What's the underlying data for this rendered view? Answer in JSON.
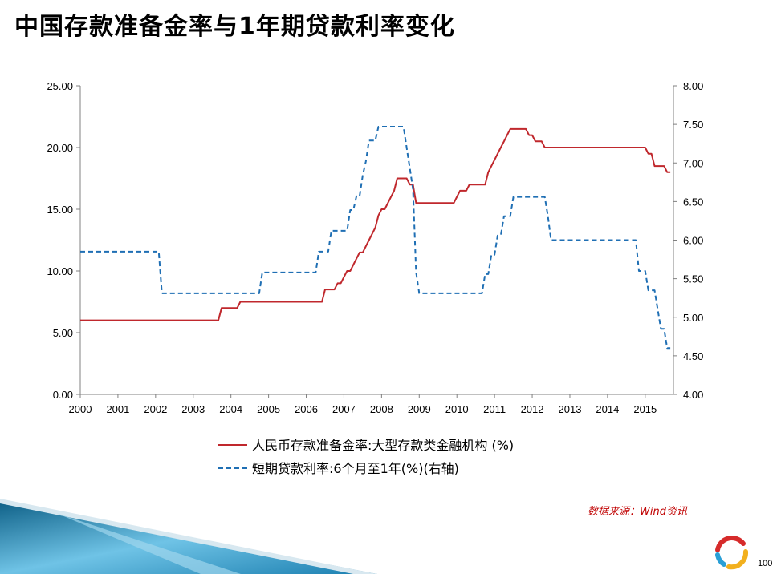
{
  "title": "中国存款准备金率与1年期贷款利率变化",
  "source": "数据来源：Wind资讯",
  "page_number": "100",
  "colors": {
    "series1": "#c0282d",
    "series2": "#1f6fb4",
    "source": "#c00000"
  },
  "chart_data": {
    "type": "line",
    "x_ticks": [
      "2000",
      "2001",
      "2002",
      "2003",
      "2004",
      "2005",
      "2006",
      "2007",
      "2008",
      "2009",
      "2010",
      "2011",
      "2012",
      "2013",
      "2014",
      "2015"
    ],
    "y_left": {
      "min": 0,
      "max": 25,
      "ticks": [
        "0.00",
        "5.00",
        "10.00",
        "15.00",
        "20.00",
        "25.00"
      ]
    },
    "y_right": {
      "min": 4,
      "max": 8,
      "ticks": [
        "4.00",
        "4.50",
        "5.00",
        "5.50",
        "6.00",
        "6.50",
        "7.00",
        "7.50",
        "8.00"
      ]
    },
    "legend_position": "bottom",
    "series": [
      {
        "name": "人民币存款准备金率:大型存款类金融机构 (%)",
        "axis": "left",
        "style": "solid",
        "points": [
          [
            "2000-01",
            6.0
          ],
          [
            "2003-09",
            6.0
          ],
          [
            "2003-10",
            7.0
          ],
          [
            "2004-03",
            7.0
          ],
          [
            "2004-04",
            7.5
          ],
          [
            "2006-06",
            7.5
          ],
          [
            "2006-07",
            8.5
          ],
          [
            "2006-10",
            8.5
          ],
          [
            "2006-11",
            9.0
          ],
          [
            "2006-12",
            9.0
          ],
          [
            "2007-01",
            9.5
          ],
          [
            "2007-02",
            10.0
          ],
          [
            "2007-03",
            10.0
          ],
          [
            "2007-04",
            10.5
          ],
          [
            "2007-05",
            11.0
          ],
          [
            "2007-06",
            11.5
          ],
          [
            "2007-07",
            11.5
          ],
          [
            "2007-08",
            12.0
          ],
          [
            "2007-09",
            12.5
          ],
          [
            "2007-10",
            13.0
          ],
          [
            "2007-11",
            13.5
          ],
          [
            "2007-12",
            14.5
          ],
          [
            "2008-01",
            15.0
          ],
          [
            "2008-02",
            15.0
          ],
          [
            "2008-03",
            15.5
          ],
          [
            "2008-04",
            16.0
          ],
          [
            "2008-05",
            16.5
          ],
          [
            "2008-06",
            17.5
          ],
          [
            "2008-09",
            17.5
          ],
          [
            "2008-10",
            17.0
          ],
          [
            "2008-11",
            17.0
          ],
          [
            "2008-12",
            15.5
          ],
          [
            "2009-12",
            15.5
          ],
          [
            "2010-01",
            16.0
          ],
          [
            "2010-02",
            16.5
          ],
          [
            "2010-03",
            16.5
          ],
          [
            "2010-04",
            16.5
          ],
          [
            "2010-05",
            17.0
          ],
          [
            "2010-10",
            17.0
          ],
          [
            "2010-11",
            18.0
          ],
          [
            "2010-12",
            18.5
          ],
          [
            "2011-01",
            19.0
          ],
          [
            "2011-02",
            19.5
          ],
          [
            "2011-03",
            20.0
          ],
          [
            "2011-04",
            20.5
          ],
          [
            "2011-05",
            21.0
          ],
          [
            "2011-06",
            21.5
          ],
          [
            "2011-11",
            21.5
          ],
          [
            "2011-12",
            21.0
          ],
          [
            "2012-01",
            21.0
          ],
          [
            "2012-02",
            20.5
          ],
          [
            "2012-04",
            20.5
          ],
          [
            "2012-05",
            20.0
          ],
          [
            "2015-01",
            20.0
          ],
          [
            "2015-02",
            19.5
          ],
          [
            "2015-03",
            19.5
          ],
          [
            "2015-04",
            18.5
          ],
          [
            "2015-05",
            18.5
          ],
          [
            "2015-06",
            18.5
          ],
          [
            "2015-07",
            18.5
          ],
          [
            "2015-08",
            18.0
          ],
          [
            "2015-09",
            18.0
          ]
        ]
      },
      {
        "name": "短期贷款利率:6个月至1年(%)(右轴)",
        "axis": "right",
        "style": "dashed",
        "points": [
          [
            "2000-01",
            5.85
          ],
          [
            "2002-02",
            5.85
          ],
          [
            "2002-03",
            5.31
          ],
          [
            "2004-10",
            5.31
          ],
          [
            "2004-11",
            5.58
          ],
          [
            "2006-04",
            5.58
          ],
          [
            "2006-05",
            5.85
          ],
          [
            "2006-08",
            5.85
          ],
          [
            "2006-09",
            6.12
          ],
          [
            "2007-02",
            6.12
          ],
          [
            "2007-03",
            6.39
          ],
          [
            "2007-04",
            6.39
          ],
          [
            "2007-05",
            6.57
          ],
          [
            "2007-06",
            6.57
          ],
          [
            "2007-07",
            6.84
          ],
          [
            "2007-08",
            7.02
          ],
          [
            "2007-09",
            7.29
          ],
          [
            "2007-11",
            7.29
          ],
          [
            "2007-12",
            7.47
          ],
          [
            "2008-08",
            7.47
          ],
          [
            "2008-09",
            7.2
          ],
          [
            "2008-10",
            6.93
          ],
          [
            "2008-11",
            6.66
          ],
          [
            "2008-12",
            5.58
          ],
          [
            "2009-01",
            5.31
          ],
          [
            "2010-09",
            5.31
          ],
          [
            "2010-10",
            5.56
          ],
          [
            "2010-11",
            5.56
          ],
          [
            "2010-12",
            5.81
          ],
          [
            "2011-01",
            5.81
          ],
          [
            "2011-02",
            6.06
          ],
          [
            "2011-03",
            6.06
          ],
          [
            "2011-04",
            6.31
          ],
          [
            "2011-06",
            6.31
          ],
          [
            "2011-07",
            6.56
          ],
          [
            "2012-05",
            6.56
          ],
          [
            "2012-06",
            6.31
          ],
          [
            "2012-07",
            6.0
          ],
          [
            "2014-10",
            6.0
          ],
          [
            "2014-11",
            5.6
          ],
          [
            "2015-01",
            5.6
          ],
          [
            "2015-02",
            5.35
          ],
          [
            "2015-04",
            5.35
          ],
          [
            "2015-05",
            5.1
          ],
          [
            "2015-06",
            4.85
          ],
          [
            "2015-07",
            4.85
          ],
          [
            "2015-08",
            4.6
          ],
          [
            "2015-09",
            4.6
          ]
        ]
      }
    ]
  }
}
